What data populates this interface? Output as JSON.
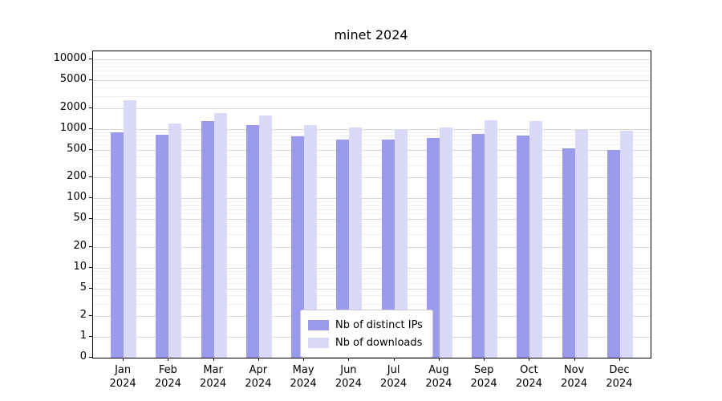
{
  "chart_data": {
    "type": "bar",
    "title": "minet 2024",
    "categories": [
      "Jan 2024",
      "Feb 2024",
      "Mar 2024",
      "Apr 2024",
      "May 2024",
      "Jun 2024",
      "Jul 2024",
      "Aug 2024",
      "Sep 2024",
      "Oct 2024",
      "Nov 2024",
      "Dec 2024"
    ],
    "series": [
      {
        "name": "Nb of distinct IPs",
        "color": "#9b9bee",
        "values": [
          900,
          820,
          1300,
          1150,
          780,
          700,
          700,
          750,
          850,
          800,
          530,
          500
        ]
      },
      {
        "name": "Nb of downloads",
        "color": "#d9d9f8",
        "values": [
          2600,
          1200,
          1700,
          1550,
          1150,
          1050,
          1000,
          1050,
          1350,
          1300,
          960,
          950
        ]
      }
    ],
    "yscale": "symlog",
    "ylim": [
      0,
      10000
    ],
    "yticks": [
      0,
      1,
      2,
      5,
      10,
      20,
      50,
      100,
      200,
      500,
      1000,
      2000,
      5000,
      10000
    ],
    "xlabel": "",
    "ylabel": "",
    "grid": true,
    "legend_position": "lower center"
  }
}
